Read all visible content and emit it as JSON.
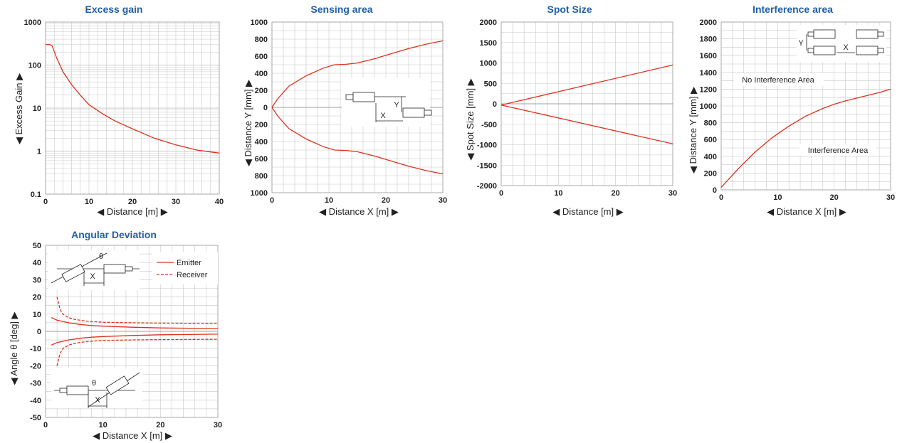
{
  "chart_data": [
    {
      "id": "excess",
      "type": "line",
      "title": "Excess gain",
      "xlabel": "◀ Distance [m] ▶",
      "ylabel": "◀ Excess Gain ▶",
      "xlim": [
        0,
        40
      ],
      "ylim": [
        0.1,
        1000
      ],
      "yscale": "log",
      "xticks": [
        0,
        10,
        20,
        30,
        40
      ],
      "yticks": [
        0.1,
        1,
        10,
        100,
        1000
      ],
      "ytick_labels": [
        "0.1",
        "1",
        "10",
        "100",
        "1000"
      ],
      "grid": true,
      "series": [
        {
          "values": [
            [
              0,
              300
            ],
            [
              1,
              300
            ],
            [
              1.5,
              280
            ],
            [
              2.5,
              150
            ],
            [
              4,
              70
            ],
            [
              6,
              35
            ],
            [
              8,
              20
            ],
            [
              10,
              12
            ],
            [
              13,
              7.5
            ],
            [
              16,
              5
            ],
            [
              20,
              3.3
            ],
            [
              25,
              2
            ],
            [
              30,
              1.4
            ],
            [
              35,
              1.05
            ],
            [
              40,
              0.9
            ]
          ]
        }
      ]
    },
    {
      "id": "sensing",
      "type": "line",
      "title": "Sensing area",
      "xlabel": "◀ Distance X [m] ▶",
      "ylabel": "◀ Distance Y [mm] ▶",
      "xlim": [
        0,
        30
      ],
      "ylim": [
        -1000,
        1000
      ],
      "xticks": [
        0,
        10,
        20,
        30
      ],
      "yticks": [
        1000,
        800,
        600,
        400,
        200,
        0,
        -200,
        -400,
        -600,
        -800,
        -1000
      ],
      "ytick_labels": [
        "1000",
        "800",
        "600",
        "400",
        "200",
        "0",
        "200",
        "400",
        "600",
        "800",
        "1000"
      ],
      "grid": true,
      "annotations": [
        "Y",
        "X"
      ],
      "series": [
        {
          "values": [
            [
              0,
              0
            ],
            [
              1,
              100
            ],
            [
              3,
              250
            ],
            [
              6,
              370
            ],
            [
              9,
              460
            ],
            [
              11,
              500
            ],
            [
              13,
              505
            ],
            [
              15,
              520
            ],
            [
              18,
              570
            ],
            [
              21,
              630
            ],
            [
              24,
              690
            ],
            [
              27,
              740
            ],
            [
              30,
              780
            ]
          ]
        },
        {
          "values": [
            [
              0,
              0
            ],
            [
              1,
              -100
            ],
            [
              3,
              -250
            ],
            [
              6,
              -370
            ],
            [
              9,
              -460
            ],
            [
              11,
              -500
            ],
            [
              13,
              -505
            ],
            [
              15,
              -520
            ],
            [
              18,
              -570
            ],
            [
              21,
              -630
            ],
            [
              24,
              -690
            ],
            [
              27,
              -740
            ],
            [
              30,
              -780
            ]
          ]
        }
      ]
    },
    {
      "id": "spot",
      "type": "line",
      "title": "Spot Size",
      "xlabel": "◀ Distance [m] ▶",
      "ylabel": "◀ Spot Size [mm] ▶",
      "xlim": [
        0,
        30
      ],
      "ylim": [
        -2000,
        2000
      ],
      "xticks": [
        0,
        10,
        20,
        30
      ],
      "yticks": [
        2000,
        1500,
        1000,
        500,
        0,
        -500,
        -1000,
        -1500,
        -2000
      ],
      "ytick_labels": [
        "2000",
        "1500",
        "1000",
        "500",
        "0",
        "-500",
        "-1000",
        "-1500",
        "-2000"
      ],
      "grid": true,
      "series": [
        {
          "values": [
            [
              0,
              -30
            ],
            [
              30,
              950
            ]
          ]
        },
        {
          "values": [
            [
              0,
              -30
            ],
            [
              30,
              -980
            ]
          ]
        }
      ]
    },
    {
      "id": "interf",
      "type": "line",
      "title": "Interference area",
      "xlabel": "◀ Distance X [m] ▶",
      "ylabel": "◀ Distance Y [mm] ▶",
      "xlim": [
        0,
        30
      ],
      "ylim": [
        0,
        2000
      ],
      "xticks": [
        0,
        10,
        20,
        30
      ],
      "yticks": [
        2000,
        1800,
        1600,
        1400,
        1200,
        1000,
        800,
        600,
        400,
        200,
        0
      ],
      "ytick_labels": [
        "2000",
        "1800",
        "1600",
        "1400",
        "1200",
        "1000",
        "800",
        "600",
        "400",
        "200",
        "0"
      ],
      "grid": true,
      "annotations": [
        "No Interference Area",
        "Interference Area",
        "Y",
        "X"
      ],
      "series": [
        {
          "values": [
            [
              0,
              30
            ],
            [
              3,
              250
            ],
            [
              6,
              450
            ],
            [
              9,
              620
            ],
            [
              12,
              760
            ],
            [
              15,
              880
            ],
            [
              18,
              970
            ],
            [
              20,
              1020
            ],
            [
              22,
              1060
            ],
            [
              25,
              1110
            ],
            [
              28,
              1160
            ],
            [
              30,
              1200
            ]
          ]
        }
      ]
    },
    {
      "id": "angular",
      "type": "line",
      "title": "Angular Deviation",
      "xlabel": "◀ Distance X [m] ▶",
      "ylabel": "◀ Angle θ [deg] ▶",
      "xlim": [
        0,
        30
      ],
      "ylim": [
        -50,
        50
      ],
      "xticks": [
        0,
        10,
        20,
        30
      ],
      "yticks": [
        50,
        40,
        30,
        20,
        10,
        0,
        -10,
        -20,
        -30,
        -40,
        -50
      ],
      "ytick_labels": [
        "50",
        "40",
        "30",
        "20",
        "10",
        "0",
        "-10",
        "-20",
        "-30",
        "-40",
        "-50"
      ],
      "grid": true,
      "legend": "top-right",
      "annotations": [
        "θ",
        "X",
        "θ",
        "X"
      ],
      "series": [
        {
          "name": "Emitter",
          "style": "solid",
          "values": [
            [
              1,
              8
            ],
            [
              2,
              6.5
            ],
            [
              4,
              5
            ],
            [
              6,
              4
            ],
            [
              8,
              3.4
            ],
            [
              10,
              3
            ],
            [
              15,
              2.4
            ],
            [
              20,
              2
            ],
            [
              25,
              1.8
            ],
            [
              30,
              1.6
            ]
          ]
        },
        {
          "name": "",
          "style": "solid",
          "values": [
            [
              1,
              -8
            ],
            [
              2,
              -6.5
            ],
            [
              4,
              -5
            ],
            [
              6,
              -4
            ],
            [
              8,
              -3.4
            ],
            [
              10,
              -3
            ],
            [
              15,
              -2.4
            ],
            [
              20,
              -2
            ],
            [
              25,
              -1.8
            ],
            [
              30,
              -1.6
            ]
          ]
        },
        {
          "name": "Receiver",
          "style": "dashed",
          "values": [
            [
              2,
              20
            ],
            [
              2.5,
              13
            ],
            [
              3,
              10
            ],
            [
              4,
              8
            ],
            [
              5,
              7
            ],
            [
              7,
              6
            ],
            [
              10,
              5.3
            ],
            [
              15,
              5
            ],
            [
              20,
              4.8
            ],
            [
              30,
              4.6
            ]
          ]
        },
        {
          "name": "",
          "style": "dashed",
          "values": [
            [
              2,
              -20
            ],
            [
              2.5,
              -13
            ],
            [
              3,
              -10
            ],
            [
              4,
              -8
            ],
            [
              5,
              -7
            ],
            [
              7,
              -6
            ],
            [
              10,
              -5.3
            ],
            [
              15,
              -5
            ],
            [
              20,
              -4.8
            ],
            [
              30,
              -4.6
            ]
          ]
        }
      ]
    }
  ],
  "colors": {
    "curve": "#e0301e",
    "grid": "#c8c8c8",
    "title": "#1f5fa8"
  }
}
